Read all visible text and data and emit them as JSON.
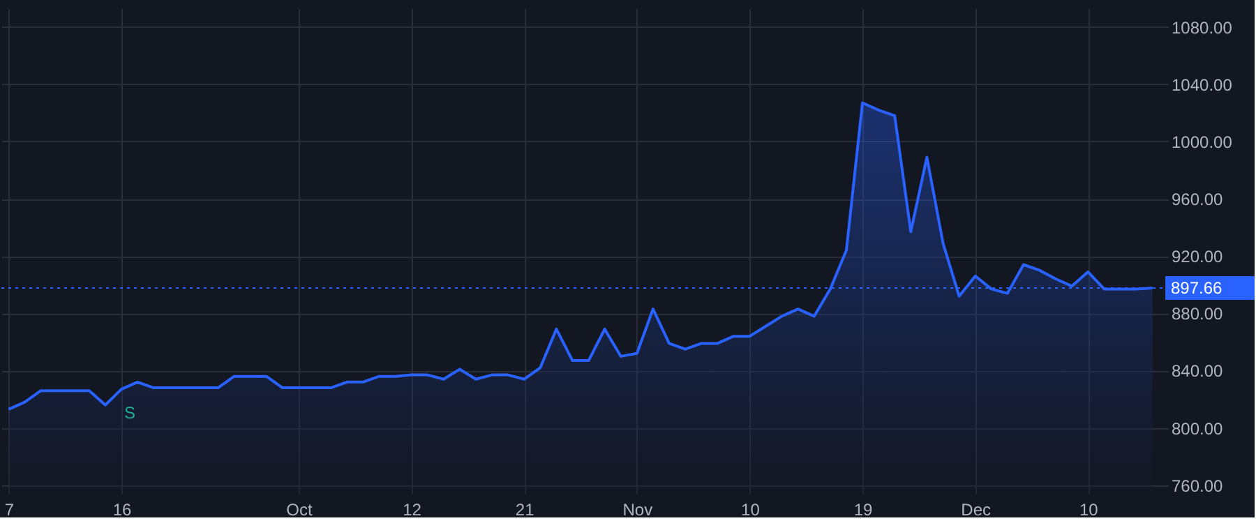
{
  "chart_data": {
    "type": "area",
    "categories": [
      "7",
      null,
      null,
      null,
      null,
      null,
      null,
      "16",
      null,
      null,
      null,
      null,
      null,
      null,
      null,
      null,
      null,
      null,
      "Oct",
      null,
      null,
      null,
      null,
      null,
      null,
      "12",
      null,
      null,
      null,
      null,
      null,
      null,
      "21",
      null,
      null,
      null,
      null,
      null,
      null,
      "Nov",
      null,
      null,
      null,
      null,
      null,
      null,
      "10",
      null,
      null,
      null,
      null,
      null,
      null,
      "19",
      null,
      null,
      null,
      null,
      null,
      null,
      "Dec",
      null,
      null,
      null,
      null,
      null,
      null,
      "10",
      null,
      null,
      null,
      null
    ],
    "series": [
      {
        "color": "#2962ff",
        "values": [
          813,
          818,
          826,
          826,
          826,
          826,
          816,
          827,
          832,
          828,
          828,
          828,
          828,
          828,
          836,
          836,
          836,
          828,
          828,
          828,
          828,
          832,
          832,
          836,
          836,
          837,
          837,
          834,
          841,
          834,
          837,
          837,
          834,
          842,
          869,
          847,
          847,
          869,
          850,
          852,
          883,
          859,
          855,
          859,
          859,
          864,
          864,
          871,
          878,
          883,
          878,
          897,
          924,
          1027,
          1022,
          1018,
          937,
          989,
          929,
          892,
          906,
          897,
          894,
          914,
          910,
          904,
          899,
          909,
          897,
          897,
          897,
          897.66
        ]
      }
    ],
    "ylim": [
      754,
      1093
    ],
    "yticks": [
      {
        "value": 760,
        "label": "760.00"
      },
      {
        "value": 800,
        "label": "800.00"
      },
      {
        "value": 840,
        "label": "840.00"
      },
      {
        "value": 880,
        "label": "880.00"
      },
      {
        "value": 920,
        "label": "920.00"
      },
      {
        "value": 960,
        "label": "960.00"
      },
      {
        "value": 1000,
        "label": "1000.00"
      },
      {
        "value": 1040,
        "label": "1040.00"
      },
      {
        "value": 1080,
        "label": "1080.00"
      }
    ],
    "ref_lines": [
      {
        "axis": "y",
        "value": 897.66,
        "label": "897.66",
        "color": "#2962ff",
        "line_style": "dotted"
      }
    ],
    "annotations": [
      "S"
    ],
    "grid": true,
    "line_style": "solid",
    "marker": "none"
  }
}
